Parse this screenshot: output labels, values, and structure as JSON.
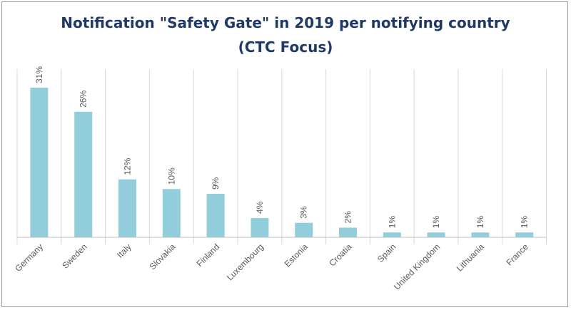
{
  "chart_data": {
    "type": "bar",
    "title": "Notification \"Safety Gate\" in 2019 per notifying country",
    "subtitle": "(CTC Focus)",
    "categories": [
      "Germany",
      "Sweden",
      "Italy",
      "Slovakia",
      "Finland",
      "Luxembourg",
      "Estonia",
      "Croatia",
      "Spain",
      "United Kingdom",
      "Lithuania",
      "France"
    ],
    "values": [
      31,
      26,
      12,
      10,
      9,
      4,
      3,
      2,
      1,
      1,
      1,
      1
    ],
    "data_labels": [
      "31%",
      "26%",
      "12%",
      "10%",
      "9%",
      "4%",
      "3%",
      "2%",
      "1%",
      "1%",
      "1%",
      "1%"
    ],
    "xlabel": "",
    "ylabel": "",
    "ylim": [
      0,
      35
    ],
    "grid": "vertical separators",
    "legend": "none",
    "bar_color": "#92cddc",
    "title_color": "#1f3864"
  }
}
